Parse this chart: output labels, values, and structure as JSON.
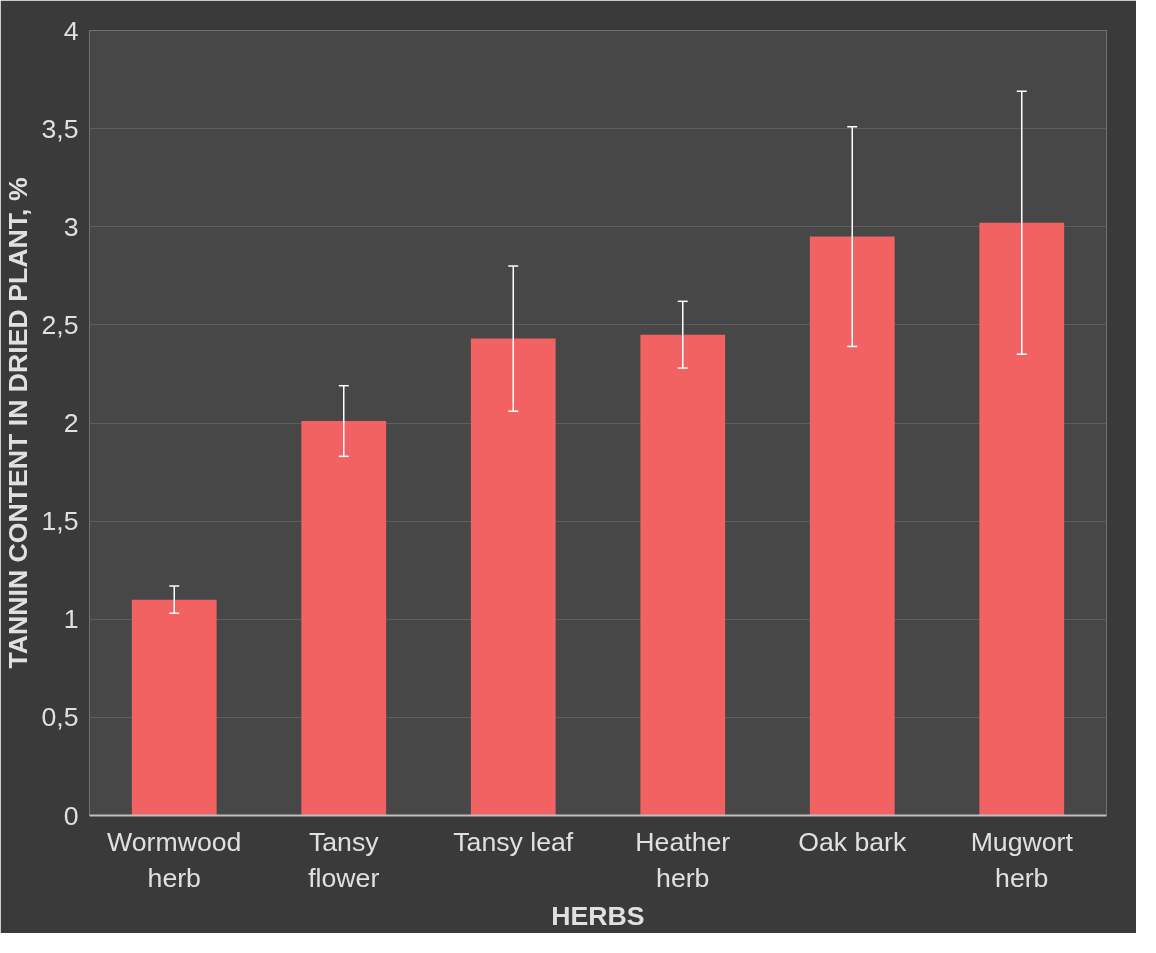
{
  "chart_data": {
    "type": "bar",
    "xlabel": "HERBS",
    "ylabel": "TANNIN CONTENT IN DRIED PLANT, %",
    "categories": [
      "Wormwood herb",
      "Tansy flower",
      "Tansy leaf",
      "Heather herb",
      "Oak bark",
      "Mugwort herb"
    ],
    "values": [
      1.1,
      2.01,
      2.43,
      2.45,
      2.95,
      3.02
    ],
    "errors": [
      0.07,
      0.18,
      0.37,
      0.17,
      0.56,
      0.67
    ],
    "color": "#f26262",
    "ylim": [
      0,
      4
    ],
    "yticks": [
      0,
      {
        "value": 0.5,
        "label": "0,5"
      },
      1,
      {
        "value": 1.5,
        "label": "1,5"
      },
      2,
      {
        "value": 2.5,
        "label": "2,5"
      },
      3,
      {
        "value": 3.5,
        "label": "3,5"
      },
      4
    ],
    "grid": "y"
  }
}
